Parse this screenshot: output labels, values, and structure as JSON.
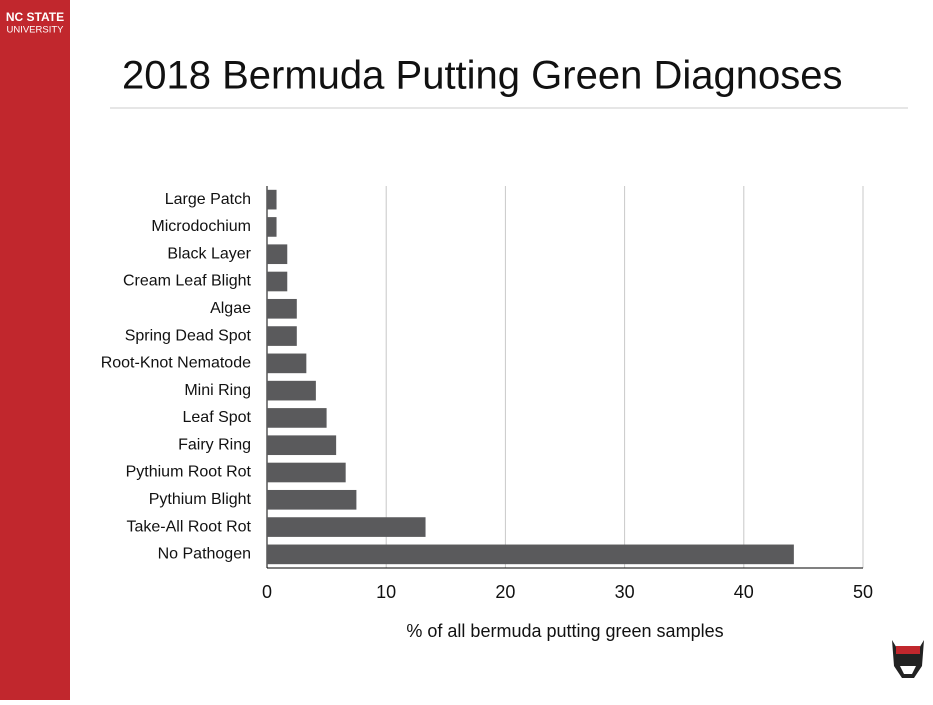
{
  "brand": {
    "line1": "NC STATE",
    "line2": "UNIVERSITY"
  },
  "chart_data": {
    "type": "hbar",
    "title": "2018 Bermuda Putting Green Diagnoses",
    "x_label": "% of all bermuda putting green samples",
    "categories": [
      "Large Patch",
      "Microdochium",
      "Black Layer",
      "Cream Leaf Blight",
      "Algae",
      "Spring Dead Spot",
      "Root-Knot Nematode",
      "Mini Ring",
      "Leaf Spot",
      "Fairy Ring",
      "Pythium Root Rot",
      "Pythium Blight",
      "Take-All Root Rot",
      "No Pathogen"
    ],
    "values": [
      0.8,
      0.8,
      1.7,
      1.7,
      2.5,
      2.5,
      3.3,
      4.1,
      5.0,
      5.8,
      6.6,
      7.5,
      13.3,
      44.2
    ],
    "color": "#5a5a5c",
    "xlim": [
      0,
      50
    ],
    "xticks": [
      0,
      10,
      20,
      30,
      40,
      50
    ],
    "grid": true
  }
}
